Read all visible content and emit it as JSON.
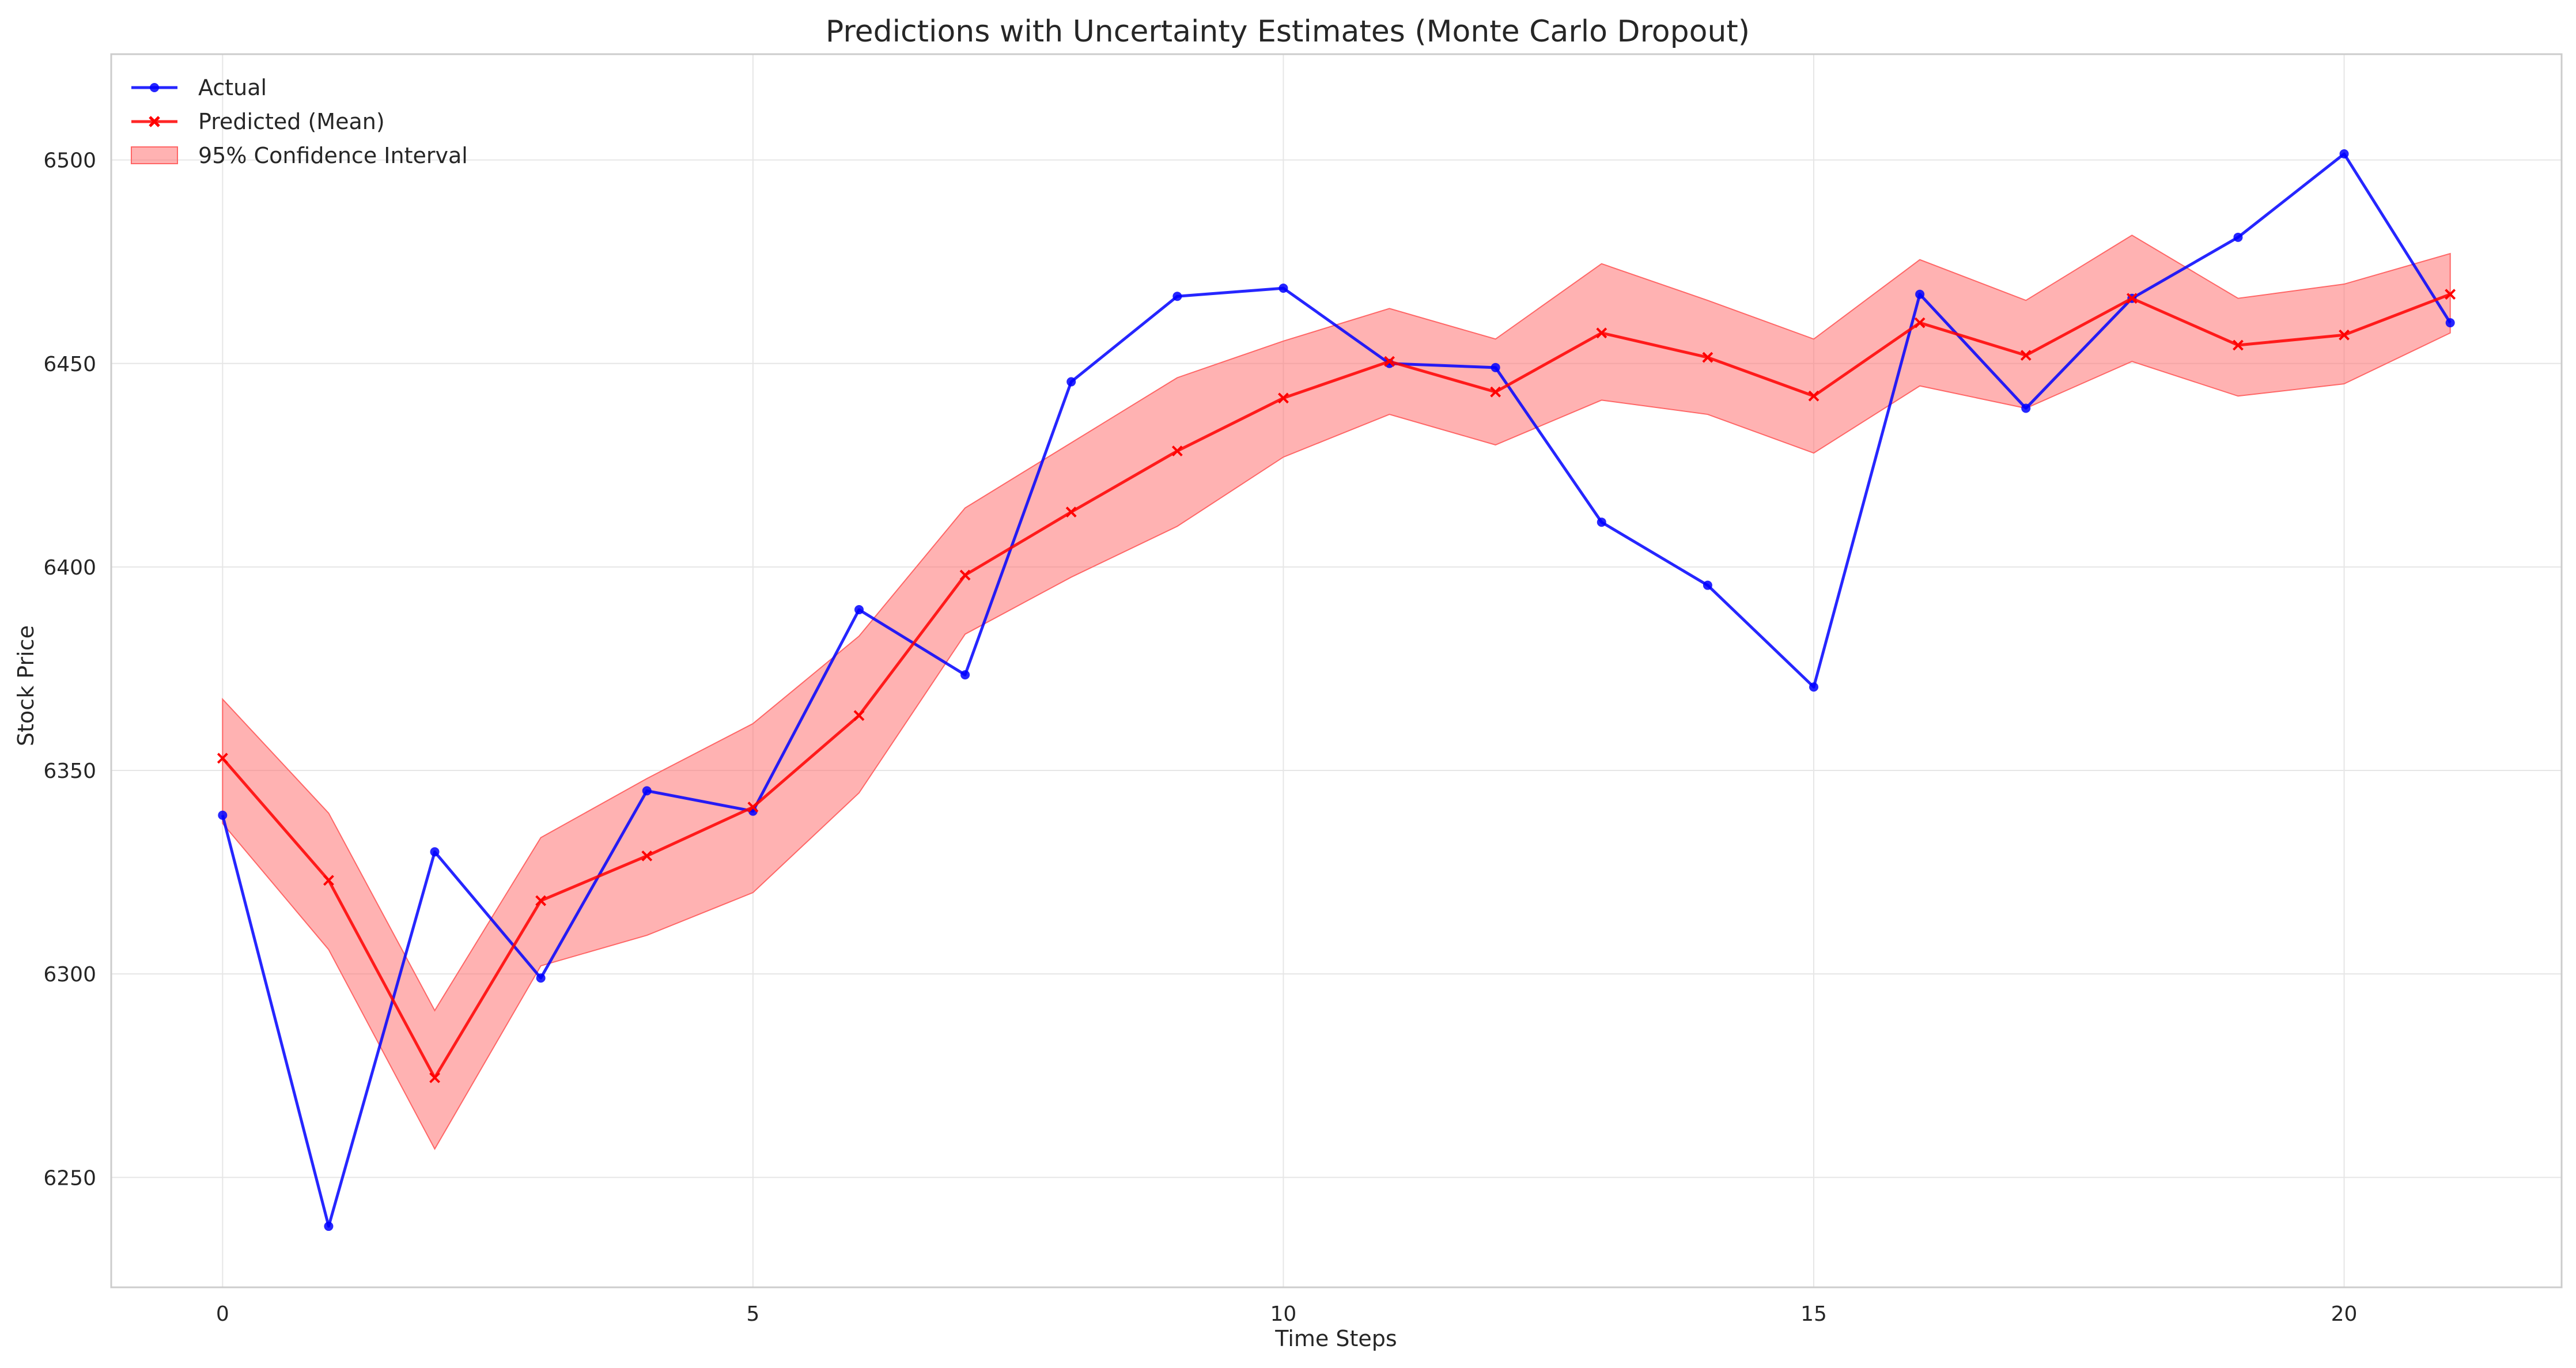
{
  "chart_data": {
    "type": "line",
    "title": "Predictions with Uncertainty Estimates (Monte Carlo Dropout)",
    "xlabel": "Time Steps",
    "ylabel": "Stock Price",
    "xlim": [
      -1.05,
      22.05
    ],
    "ylim": [
      6223,
      6526
    ],
    "xticks": [
      0,
      5,
      10,
      15,
      20
    ],
    "yticks": [
      6250,
      6300,
      6350,
      6400,
      6450,
      6500
    ],
    "grid": true,
    "legend_position": "top-left",
    "x": [
      0,
      1,
      2,
      3,
      4,
      5,
      6,
      7,
      8,
      9,
      10,
      11,
      12,
      13,
      14,
      15,
      16,
      17,
      18,
      19,
      20,
      21
    ],
    "series": [
      {
        "name": "Actual",
        "color": "#0000ff",
        "marker": "circle",
        "values": [
          6339,
          6238,
          6330,
          6299,
          6345,
          6340,
          6389.5,
          6373.5,
          6445.5,
          6466.5,
          6468.5,
          6450,
          6449,
          6411,
          6395.5,
          6370.5,
          6467,
          6439,
          6466,
          6481,
          6501.5,
          6460
        ]
      },
      {
        "name": "Predicted (Mean)",
        "color": "#ff0000",
        "marker": "x",
        "values": [
          6353,
          6323,
          6274.5,
          6318,
          6329,
          6341,
          6363.5,
          6398,
          6413.5,
          6428.5,
          6441.5,
          6450.5,
          6443,
          6457.5,
          6451.5,
          6442,
          6460,
          6452,
          6466,
          6454.5,
          6457,
          6467
        ]
      }
    ],
    "interval": {
      "name": "95% Confidence Interval",
      "color": "#ff6666",
      "lower": [
        6337,
        6306,
        6257,
        6302,
        6309.5,
        6320,
        6344.5,
        6383.5,
        6397.5,
        6410,
        6427,
        6437.5,
        6430,
        6441,
        6437.5,
        6428,
        6444.5,
        6439,
        6450.5,
        6442,
        6445,
        6457.5
      ],
      "upper": [
        6367.5,
        6339.5,
        6291,
        6333.5,
        6348,
        6361.5,
        6383,
        6414.5,
        6430.5,
        6446.5,
        6455.5,
        6463.5,
        6456,
        6474.5,
        6465.5,
        6456,
        6475.5,
        6465.5,
        6481.5,
        6466,
        6469.5,
        6477
      ]
    }
  }
}
